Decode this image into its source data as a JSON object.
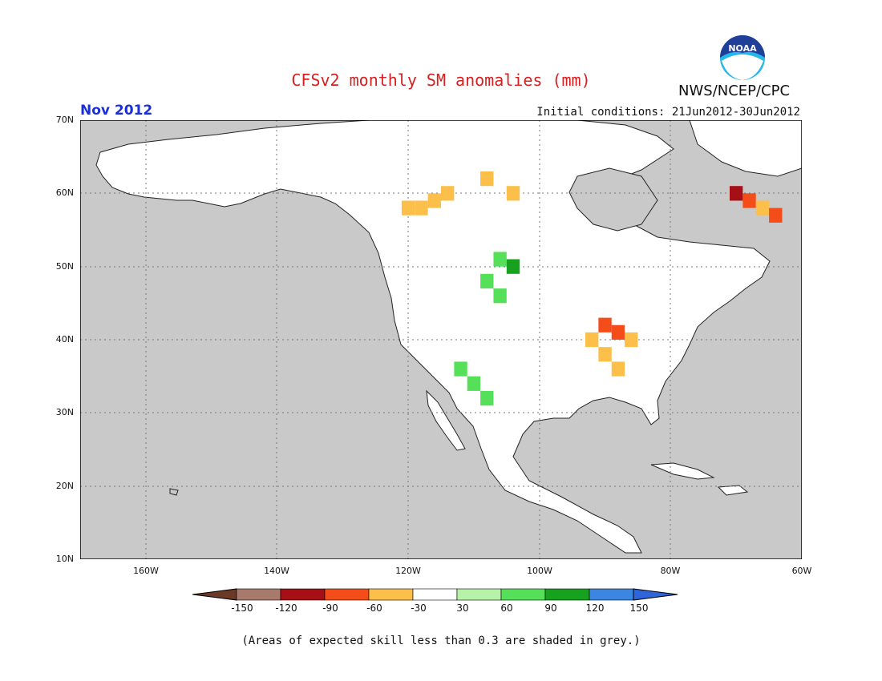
{
  "header": {
    "title": "CFSv2 monthly SM anomalies (mm)",
    "agency": "NWS/NCEP/CPC",
    "logo_text": "NOAA",
    "month_label": "Nov 2012",
    "initial_conditions": "Initial conditions: 21Jun2012-30Jun2012"
  },
  "axes": {
    "y_ticks": [
      "70N",
      "60N",
      "50N",
      "40N",
      "30N",
      "20N",
      "10N"
    ],
    "x_ticks": [
      "160W",
      "140W",
      "120W",
      "100W",
      "80W",
      "60W"
    ]
  },
  "legend": {
    "values": [
      "-150",
      "-120",
      "-90",
      "-60",
      "-30",
      "30",
      "60",
      "90",
      "120",
      "150"
    ],
    "colors": [
      "#6b3a26",
      "#a87a6c",
      "#a50f15",
      "#f44d1a",
      "#fbbf4a",
      "#ffffff",
      "#b6f2a8",
      "#56e05a",
      "#16a21e",
      "#3a86e0",
      "#2e65d8"
    ]
  },
  "footnote": "(Areas of expected skill less than 0.3 are shaded in grey.)",
  "colors": {
    "ocean": "#c9c9c9",
    "land": "#ffffff",
    "title": "#d81e1e",
    "month": "#1a2fd6",
    "grid": "#777777"
  },
  "map_data": {
    "lon_range": [
      -170,
      -60
    ],
    "lat_range": [
      10,
      70
    ],
    "anomaly_cells": [
      {
        "lon": -120,
        "lat": 58,
        "value": -40
      },
      {
        "lon": -118,
        "lat": 58,
        "value": -40
      },
      {
        "lon": -116,
        "lat": 59,
        "value": -45
      },
      {
        "lon": -114,
        "lat": 60,
        "value": -35
      },
      {
        "lon": -108,
        "lat": 62,
        "value": -35
      },
      {
        "lon": -104,
        "lat": 60,
        "value": -40
      },
      {
        "lon": -70,
        "lat": 60,
        "value": -120
      },
      {
        "lon": -68,
        "lat": 59,
        "value": -90
      },
      {
        "lon": -66,
        "lat": 58,
        "value": -60
      },
      {
        "lon": -64,
        "lat": 57,
        "value": -90
      },
      {
        "lon": -90,
        "lat": 42,
        "value": -90
      },
      {
        "lon": -88,
        "lat": 41,
        "value": -90
      },
      {
        "lon": -86,
        "lat": 40,
        "value": -60
      },
      {
        "lon": -92,
        "lat": 40,
        "value": -60
      },
      {
        "lon": -90,
        "lat": 38,
        "value": -40
      },
      {
        "lon": -88,
        "lat": 36,
        "value": -40
      },
      {
        "lon": -106,
        "lat": 51,
        "value": 70
      },
      {
        "lon": -104,
        "lat": 50,
        "value": 90
      },
      {
        "lon": -108,
        "lat": 48,
        "value": 60
      },
      {
        "lon": -106,
        "lat": 46,
        "value": 70
      },
      {
        "lon": -112,
        "lat": 36,
        "value": 60
      },
      {
        "lon": -110,
        "lat": 34,
        "value": 70
      },
      {
        "lon": -108,
        "lat": 32,
        "value": 60
      }
    ]
  }
}
